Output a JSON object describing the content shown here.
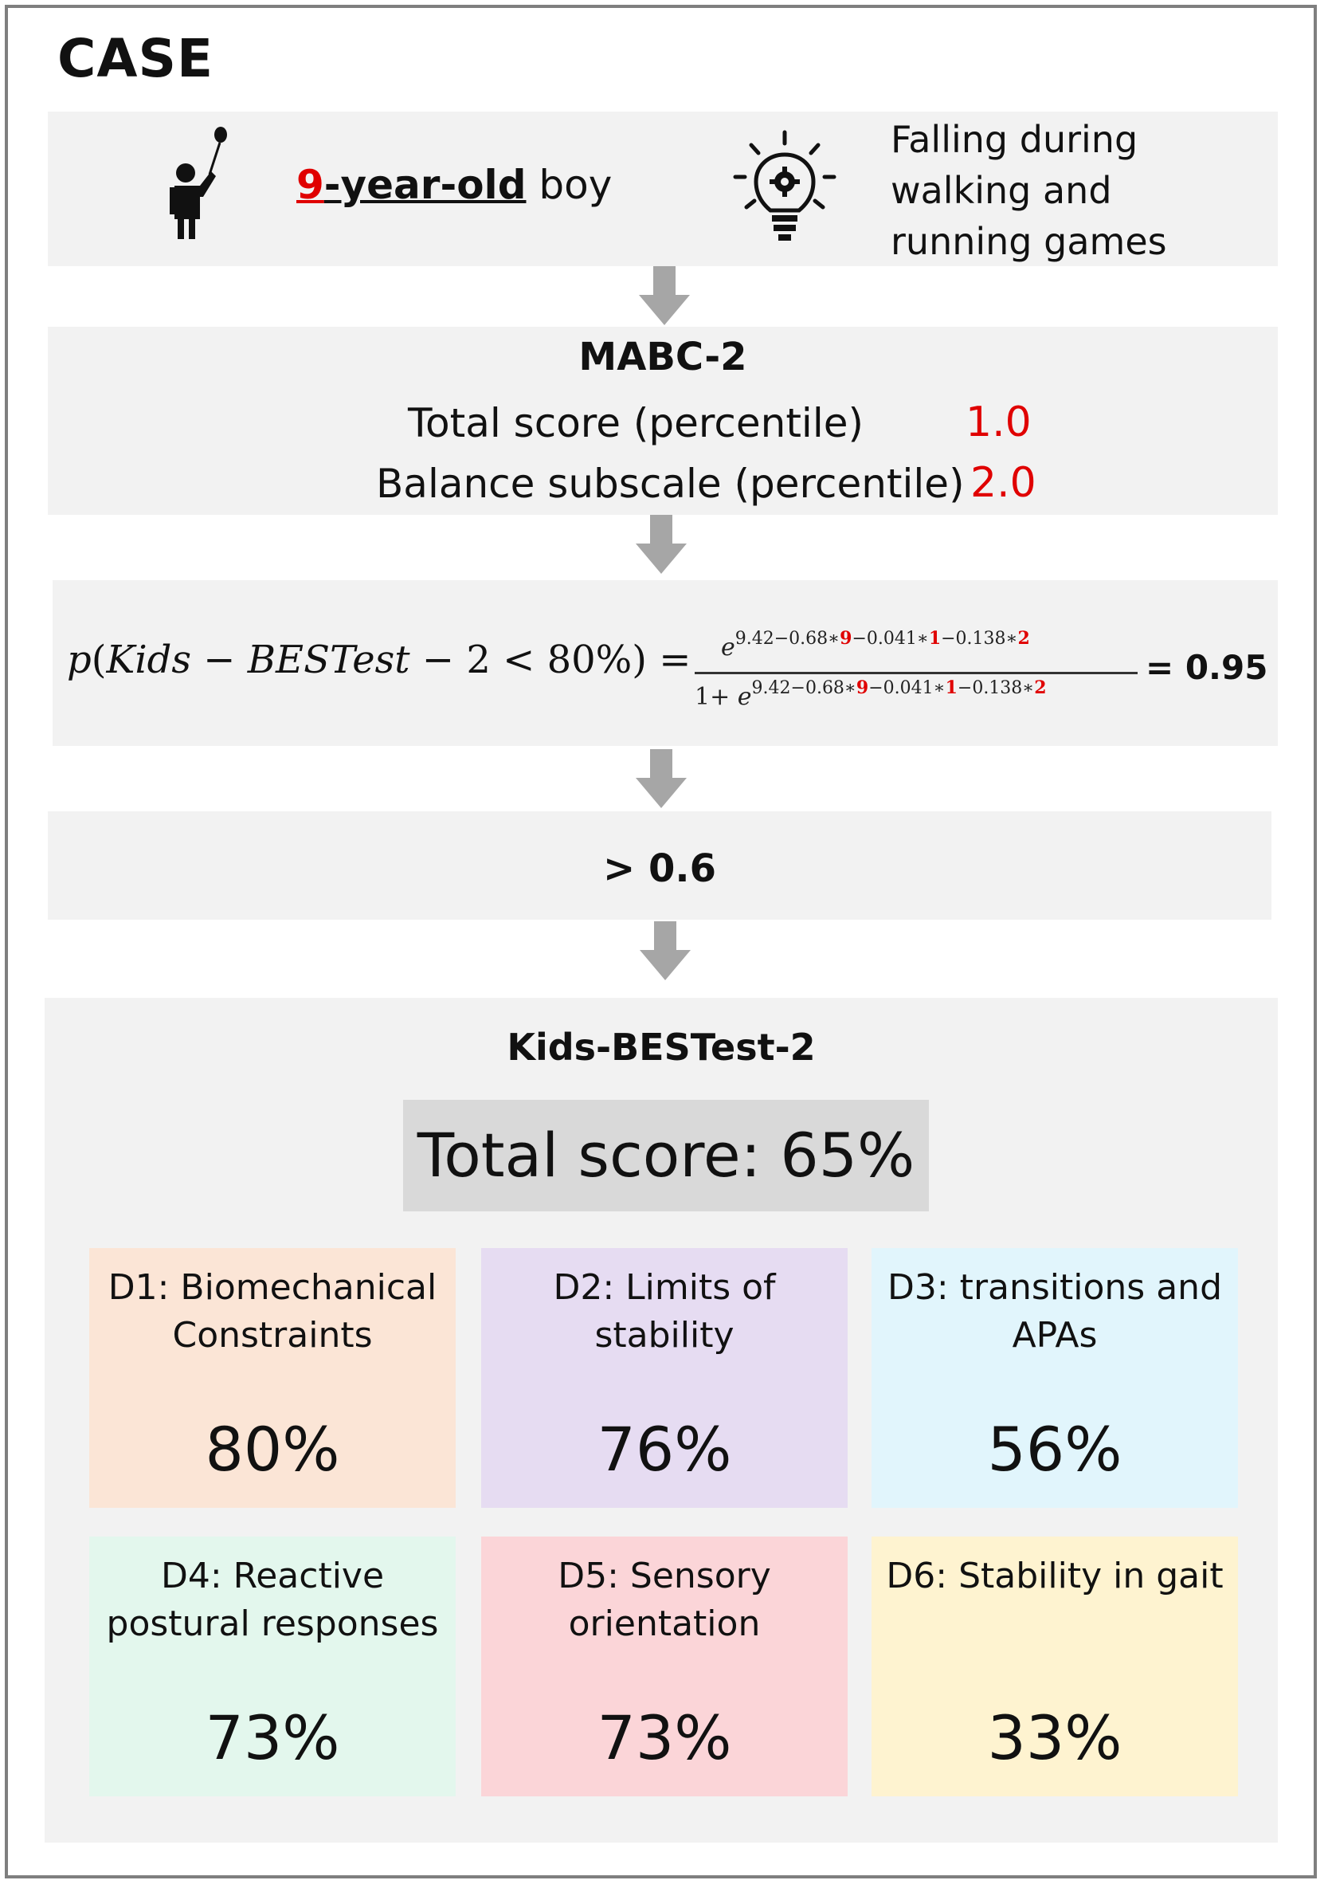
{
  "title": "CASE",
  "case": {
    "age_number": "9",
    "age_rest": "-year-old",
    "sex": "boy",
    "complaint_lines": [
      "Falling during",
      "walking and",
      "running games"
    ],
    "icons": [
      "child-with-balloon-icon",
      "lightbulb-gear-icon"
    ]
  },
  "mabc": {
    "title": "MABC-2",
    "rows": [
      {
        "label": "Total score (percentile)",
        "value": "1.0"
      },
      {
        "label": "Balance subscale (percentile)",
        "value": "2.0"
      }
    ]
  },
  "formula": {
    "lhs_p": "p",
    "lhs_open": "(",
    "lhs_kids": "Kids",
    "lhs_minus1": " − ",
    "lhs_best": "BESTest",
    "lhs_minus2": " − 2 < 80%",
    "lhs_close": ")",
    "lhs_eq": " =",
    "base": "e",
    "one_plus": "1+ ",
    "exp_a": "9.42−0.68∗",
    "exp_age": "9",
    "exp_b": "−0.041∗",
    "exp_total": "1",
    "exp_c": "−0.138∗",
    "exp_balance": "2",
    "result": "= 0.95"
  },
  "threshold": "> 0.6",
  "kids_bestest": {
    "title": "Kids-BESTest-2",
    "total": "Total score: 65%",
    "domains": [
      {
        "label_lines": [
          "D1: Biomechanical",
          "Constraints"
        ],
        "value": "80%"
      },
      {
        "label_lines": [
          "D2: Limits of",
          "stability"
        ],
        "value": "76%"
      },
      {
        "label_lines": [
          "D3: transitions and",
          "APAs"
        ],
        "value": "56%"
      },
      {
        "label_lines": [
          "D4: Reactive",
          "postural responses"
        ],
        "value": "73%"
      },
      {
        "label_lines": [
          "D5: Sensory",
          "orientation"
        ],
        "value": "73%"
      },
      {
        "label_lines": [
          "D6: Stability in gait",
          ""
        ],
        "value": "33%"
      }
    ]
  },
  "colors": {
    "accent_red": "#e00000",
    "panel_bg": "#f2f2f2",
    "arrow": "#a6a6a6",
    "d1": "#fbe5d6",
    "d2": "#e6dcf2",
    "d3": "#e1f5fc",
    "d4": "#e3f7ed",
    "d5": "#fbd5d8",
    "d6": "#fef3d0"
  }
}
